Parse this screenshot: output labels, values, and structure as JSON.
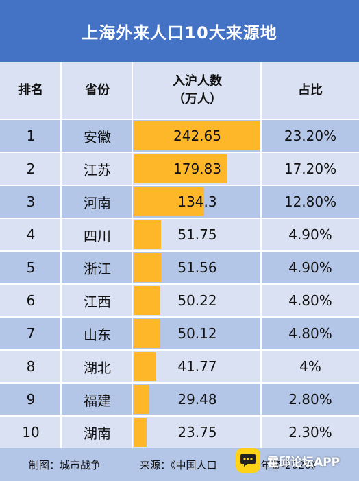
{
  "title": "上海外来人口10大来源地",
  "header": {
    "rank": "排名",
    "province": "省份",
    "population_line1": "入沪人数",
    "population_line2": "（万人）",
    "share": "占比"
  },
  "chart_data": {
    "type": "table",
    "title": "上海外来人口10大来源地",
    "columns": [
      "排名",
      "省份",
      "入沪人数（万人）",
      "占比"
    ],
    "rows": [
      {
        "rank": "1",
        "province": "安徽",
        "population": 242.65,
        "population_label": "242.65",
        "share": "23.20%"
      },
      {
        "rank": "2",
        "province": "江苏",
        "population": 179.83,
        "population_label": "179.83",
        "share": "17.20%"
      },
      {
        "rank": "3",
        "province": "河南",
        "population": 134.3,
        "population_label": "134.3",
        "share": "12.80%"
      },
      {
        "rank": "4",
        "province": "四川",
        "population": 51.75,
        "population_label": "51.75",
        "share": "4.90%"
      },
      {
        "rank": "5",
        "province": "浙江",
        "population": 51.56,
        "population_label": "51.56",
        "share": "4.90%"
      },
      {
        "rank": "6",
        "province": "江西",
        "population": 50.22,
        "population_label": "50.22",
        "share": "4.80%"
      },
      {
        "rank": "7",
        "province": "山东",
        "population": 50.12,
        "population_label": "50.12",
        "share": "4.80%"
      },
      {
        "rank": "8",
        "province": "湖北",
        "population": 41.77,
        "population_label": "41.77",
        "share": "4%"
      },
      {
        "rank": "9",
        "province": "福建",
        "population": 29.48,
        "population_label": "29.48",
        "share": "2.80%"
      },
      {
        "rank": "10",
        "province": "湖南",
        "population": 23.75,
        "population_label": "23.75",
        "share": "2.30%"
      }
    ],
    "bar_color": "#ffb72a"
  },
  "footer": {
    "maker": "制图：城市战争",
    "source": "来源：《中国人口",
    "source_tail": "年鉴-2020》"
  },
  "watermark": {
    "text": "霍邱论坛APP",
    "icon": "chat-bubble-icon"
  },
  "colors": {
    "title_bg": "#4472c4",
    "row_dark": "#b4c6e7",
    "row_light": "#d9e1f2"
  }
}
